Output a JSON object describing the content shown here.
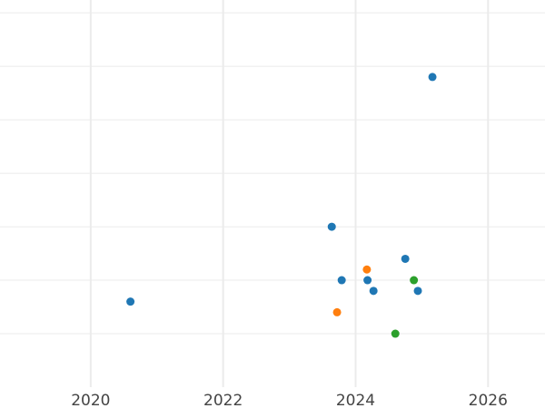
{
  "chart_data": {
    "type": "scatter",
    "title": "",
    "xlabel": "",
    "ylabel": "",
    "xlim": [
      2018.63,
      2026.86
    ],
    "ylim": [
      0,
      7.24
    ],
    "grid": true,
    "x_ticks": [
      2020,
      2022,
      2024,
      2026
    ],
    "x_tick_labels": [
      "2020",
      "2022",
      "2024",
      "2026"
    ],
    "y_gridlines": [
      1,
      2,
      3,
      4,
      5,
      6,
      7
    ],
    "series": [
      {
        "color": "#1f77b4",
        "points": [
          {
            "x": 2025.16,
            "y": 5.8
          },
          {
            "x": 2023.64,
            "y": 3.0
          },
          {
            "x": 2024.75,
            "y": 2.4
          },
          {
            "x": 2023.79,
            "y": 2.0
          },
          {
            "x": 2024.18,
            "y": 2.0
          },
          {
            "x": 2024.27,
            "y": 1.8
          },
          {
            "x": 2024.94,
            "y": 1.8
          },
          {
            "x": 2020.6,
            "y": 1.6
          }
        ]
      },
      {
        "color": "#ff7f0e",
        "points": [
          {
            "x": 2024.17,
            "y": 2.2
          },
          {
            "x": 2023.72,
            "y": 1.4
          }
        ]
      },
      {
        "color": "#2ca02c",
        "points": [
          {
            "x": 2024.88,
            "y": 2.0
          },
          {
            "x": 2024.6,
            "y": 1.0
          }
        ]
      }
    ]
  }
}
